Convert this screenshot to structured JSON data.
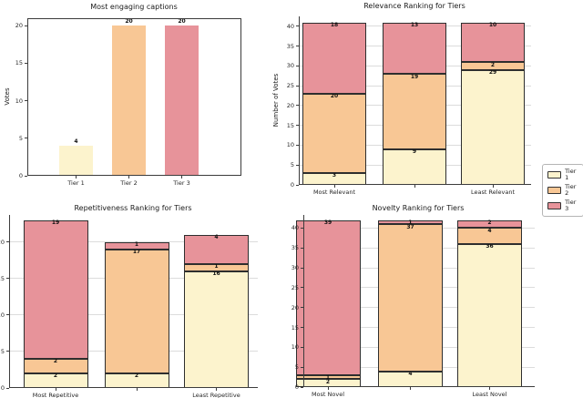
{
  "figure": {
    "background": "#ffffff"
  },
  "colors": {
    "tier1": "#FCF3CD",
    "tier2": "#F8C795",
    "tier3": "#E7939A",
    "bar_edge": "#2e2e2e",
    "grid": "#DCDCDC",
    "axis": "#3c3c3c",
    "text": "#1a1a1a"
  },
  "legend": {
    "entries": [
      {
        "label": "Tier 1",
        "color": "tier1"
      },
      {
        "label": "Tier 2",
        "color": "tier2"
      },
      {
        "label": "Tier 3",
        "color": "tier3"
      }
    ],
    "position": "right-middle"
  },
  "chart_data": [
    {
      "type": "bar",
      "title": "Most engaging captions",
      "ylabel": "Votes",
      "xlabel": "",
      "categories": [
        "Tier 1",
        "Tier 2",
        "Tier 3"
      ],
      "values": [
        4,
        20,
        20
      ],
      "data_labels": [
        "4",
        "20",
        "20"
      ],
      "bar_colors": [
        "tier1",
        "tier2",
        "tier3"
      ],
      "yticks": [
        0,
        5,
        10,
        15,
        20
      ],
      "ylim": [
        0,
        21
      ],
      "grid": false
    },
    {
      "type": "stacked-bar",
      "title": "Relevance Ranking for Tiers",
      "ylabel": "Number of Votes",
      "xlabel": "",
      "categories": [
        "Most Relevant",
        "",
        "Least Relevant"
      ],
      "series": [
        {
          "name": "Tier 1",
          "color": "tier1",
          "values": [
            3,
            9,
            29
          ]
        },
        {
          "name": "Tier 2",
          "color": "tier2",
          "values": [
            20,
            19,
            2
          ]
        },
        {
          "name": "Tier 3",
          "color": "tier3",
          "values": [
            18,
            13,
            10
          ]
        }
      ],
      "yticks": [
        0,
        5,
        10,
        15,
        20,
        25,
        30,
        35,
        40
      ],
      "ylim": [
        0,
        42.5
      ],
      "grid": true
    },
    {
      "type": "stacked-bar",
      "title": "Repetitiveness Ranking for Tiers",
      "ylabel": "",
      "xlabel": "",
      "categories": [
        "Most Repetitive",
        "",
        "Least Repetitive"
      ],
      "series": [
        {
          "name": "Tier 1",
          "color": "tier1",
          "values": [
            2,
            2,
            16
          ]
        },
        {
          "name": "Tier 2",
          "color": "tier2",
          "values": [
            2,
            17,
            1
          ]
        },
        {
          "name": "Tier 3",
          "color": "tier3",
          "values": [
            19,
            1,
            4
          ]
        }
      ],
      "yticks": [
        0,
        5,
        10,
        15,
        20
      ],
      "ylim": [
        0,
        23.7
      ],
      "grid": true
    },
    {
      "type": "stacked-bar",
      "title": "Novelty Ranking for Tiers",
      "ylabel": "",
      "xlabel": "",
      "categories": [
        "Most Novel",
        "",
        "Least Novel"
      ],
      "series": [
        {
          "name": "Tier 1",
          "color": "tier1",
          "values": [
            2,
            4,
            36
          ]
        },
        {
          "name": "Tier 2",
          "color": "tier2",
          "values": [
            1,
            37,
            4
          ]
        },
        {
          "name": "Tier 3",
          "color": "tier3",
          "values": [
            39,
            1,
            2
          ]
        }
      ],
      "yticks": [
        0,
        5,
        10,
        15,
        20,
        25,
        30,
        35,
        40
      ],
      "ylim": [
        0,
        43.3
      ],
      "grid": true
    }
  ]
}
